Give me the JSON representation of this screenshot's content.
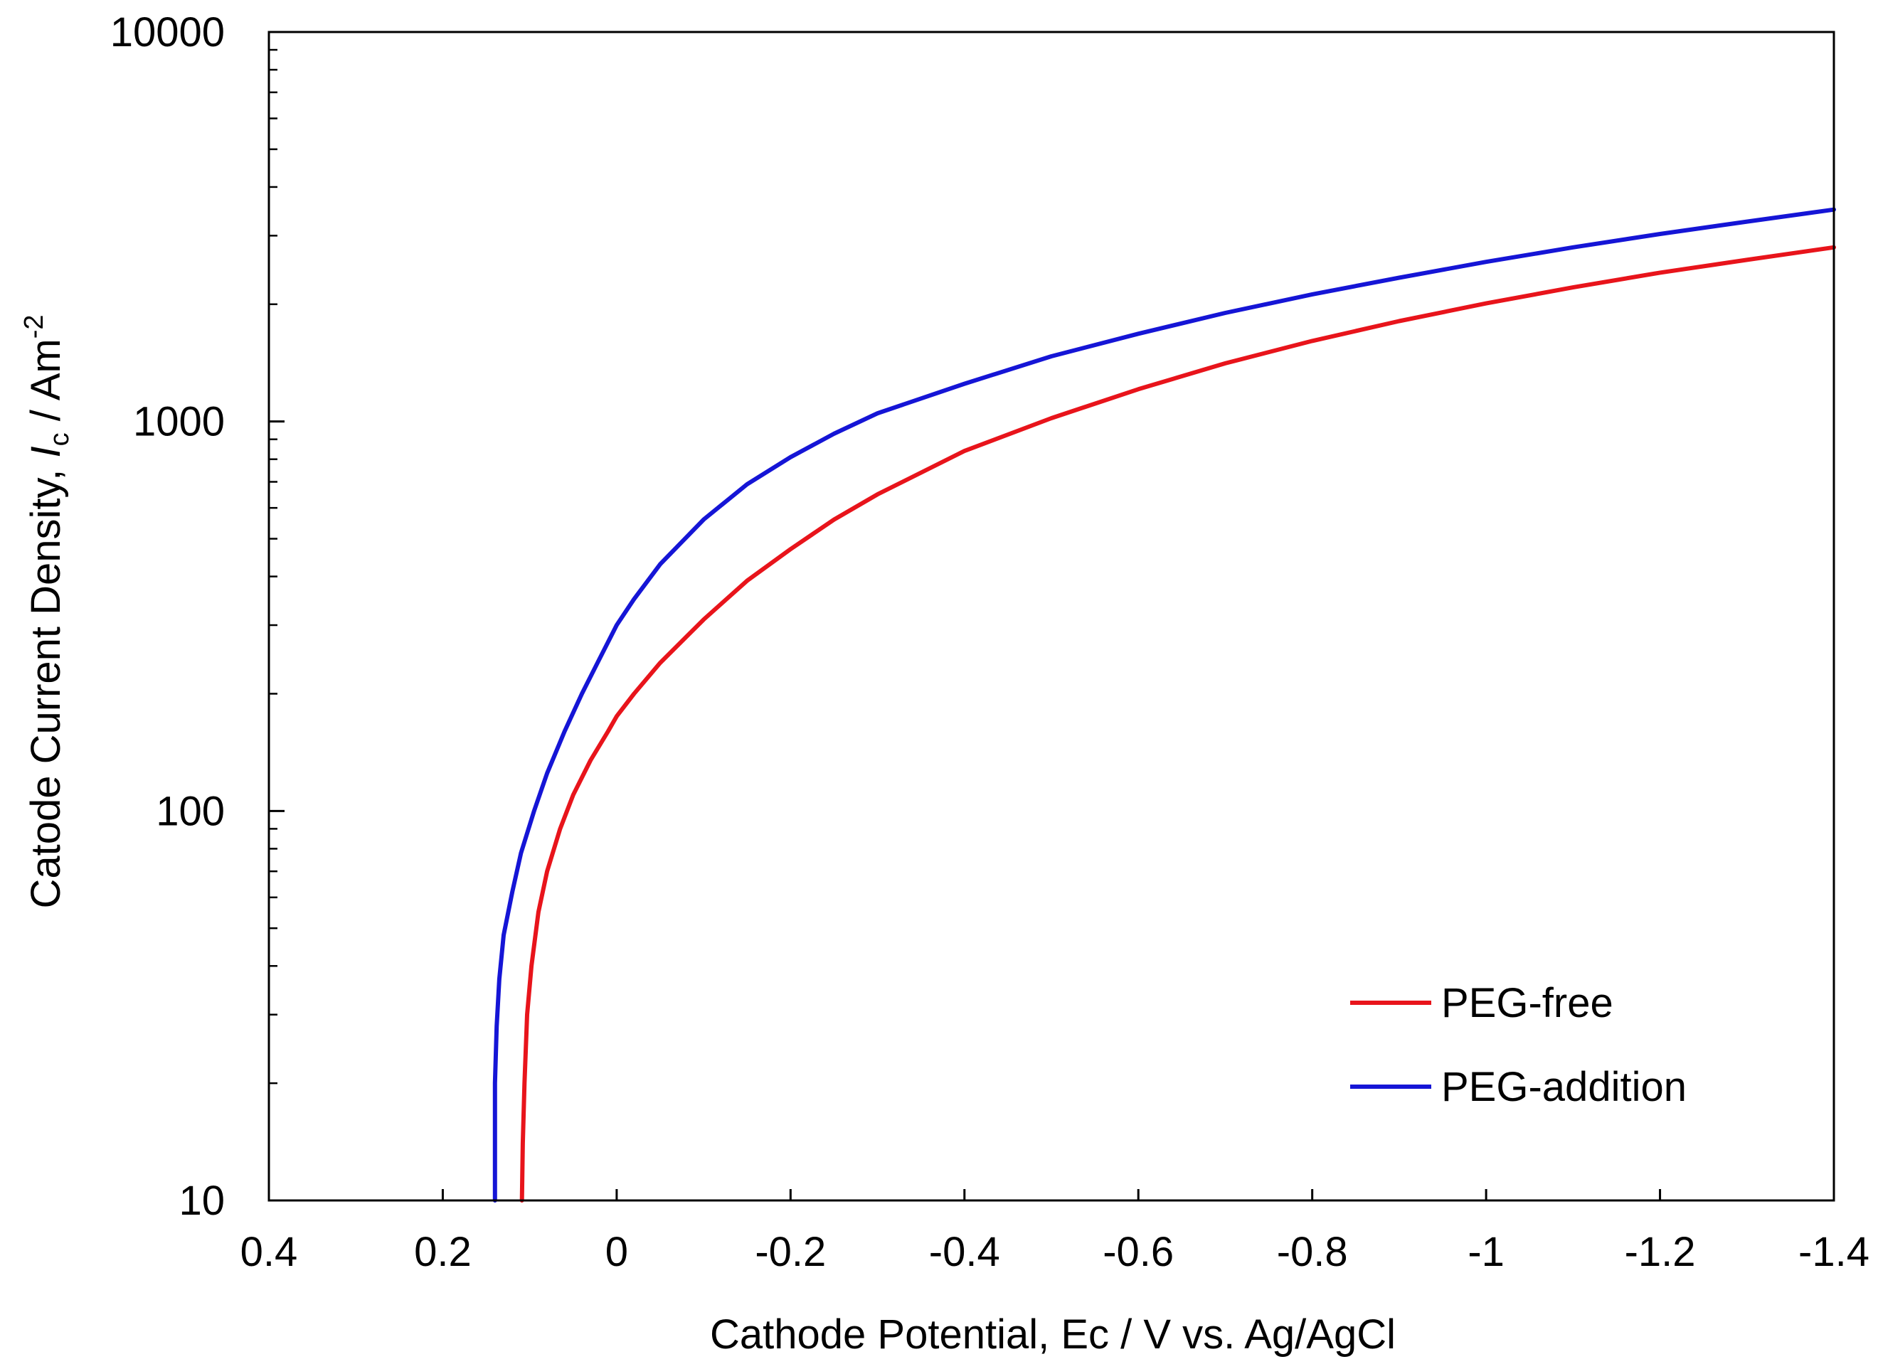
{
  "chart_data": {
    "type": "line",
    "title": "",
    "xlabel": "Cathode Potential, Ec / V vs. Ag/AgCl",
    "ylabel_parts": {
      "prefix": "Catode Current Density, ",
      "symbol": "I",
      "symbol_sub": "c",
      "unit": " / Am",
      "unit_sup": "-2"
    },
    "xlim": [
      0.4,
      -1.4
    ],
    "ylim": [
      10,
      10000
    ],
    "yscale": "log",
    "x_ticks": [
      0.4,
      0.2,
      0,
      -0.2,
      -0.4,
      -0.6,
      -0.8,
      -1,
      -1.2,
      -1.4
    ],
    "x_tick_labels": [
      "0.4",
      "0.2",
      "0",
      "-0.2",
      "-0.4",
      "-0.6",
      "-0.8",
      "-1",
      "-1.2",
      "-1.4"
    ],
    "y_ticks": [
      10,
      100,
      1000,
      10000
    ],
    "y_tick_labels": [
      "10",
      "100",
      "1000",
      "10000"
    ],
    "grid": false,
    "legend_position": "bottom-right",
    "series": [
      {
        "name": "PEG-free",
        "color": "#e8141b",
        "x": [
          0.109,
          0.108,
          0.106,
          0.103,
          0.098,
          0.09,
          0.08,
          0.065,
          0.05,
          0.03,
          0.01,
          0,
          -0.02,
          -0.05,
          -0.1,
          -0.15,
          -0.2,
          -0.25,
          -0.3,
          -0.4,
          -0.5,
          -0.6,
          -0.7,
          -0.8,
          -0.9,
          -1.0,
          -1.1,
          -1.2,
          -1.3,
          -1.4
        ],
        "values": [
          10,
          14,
          20,
          30,
          40,
          55,
          70,
          90,
          110,
          135,
          160,
          175,
          200,
          240,
          310,
          390,
          470,
          560,
          650,
          840,
          1020,
          1210,
          1410,
          1610,
          1810,
          2010,
          2210,
          2410,
          2600,
          2800
        ]
      },
      {
        "name": "PEG-addition",
        "color": "#1515d6",
        "x": [
          0.14,
          0.14,
          0.138,
          0.135,
          0.13,
          0.12,
          0.11,
          0.095,
          0.08,
          0.06,
          0.04,
          0.02,
          0,
          -0.02,
          -0.05,
          -0.1,
          -0.15,
          -0.2,
          -0.25,
          -0.3,
          -0.4,
          -0.5,
          -0.6,
          -0.7,
          -0.8,
          -0.9,
          -1.0,
          -1.1,
          -1.2,
          -1.3,
          -1.4
        ],
        "values": [
          10,
          20,
          28,
          37,
          48,
          62,
          78,
          100,
          125,
          160,
          200,
          245,
          300,
          350,
          430,
          560,
          690,
          810,
          930,
          1050,
          1250,
          1470,
          1680,
          1900,
          2120,
          2340,
          2570,
          2800,
          3030,
          3260,
          3500
        ]
      }
    ]
  }
}
